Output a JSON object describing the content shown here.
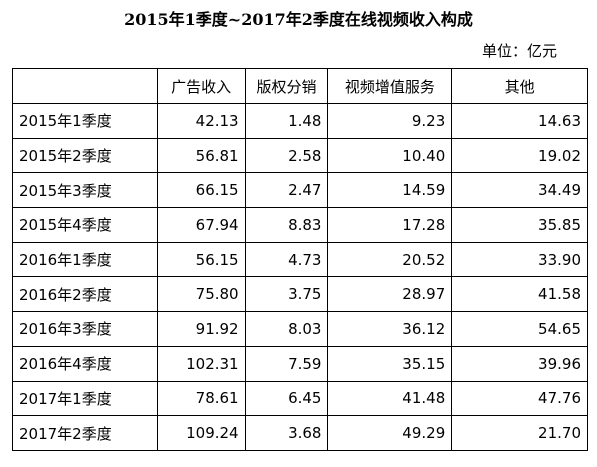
{
  "header": {
    "title": "2015年1季度~2017年2季度在线视频收入构成",
    "unit": "单位：亿元"
  },
  "table": {
    "columns": [
      "",
      "广告收入",
      "版权分销",
      "视频增值服务",
      "其他"
    ],
    "rows": [
      [
        "2015年1季度",
        "42.13",
        "1.48",
        "9.23",
        "14.63"
      ],
      [
        "2015年2季度",
        "56.81",
        "2.58",
        "10.40",
        "19.02"
      ],
      [
        "2015年3季度",
        "66.15",
        "2.47",
        "14.59",
        "34.49"
      ],
      [
        "2015年4季度",
        "67.94",
        "8.83",
        "17.28",
        "35.85"
      ],
      [
        "2016年1季度",
        "56.15",
        "4.73",
        "20.52",
        "33.90"
      ],
      [
        "2016年2季度",
        "75.80",
        "3.75",
        "28.97",
        "41.58"
      ],
      [
        "2016年3季度",
        "91.92",
        "8.03",
        "36.12",
        "54.65"
      ],
      [
        "2016年4季度",
        "102.31",
        "7.59",
        "35.15",
        "39.96"
      ],
      [
        "2017年1季度",
        "78.61",
        "6.45",
        "41.48",
        "47.76"
      ],
      [
        "2017年2季度",
        "109.24",
        "3.68",
        "49.29",
        "21.70"
      ]
    ]
  }
}
